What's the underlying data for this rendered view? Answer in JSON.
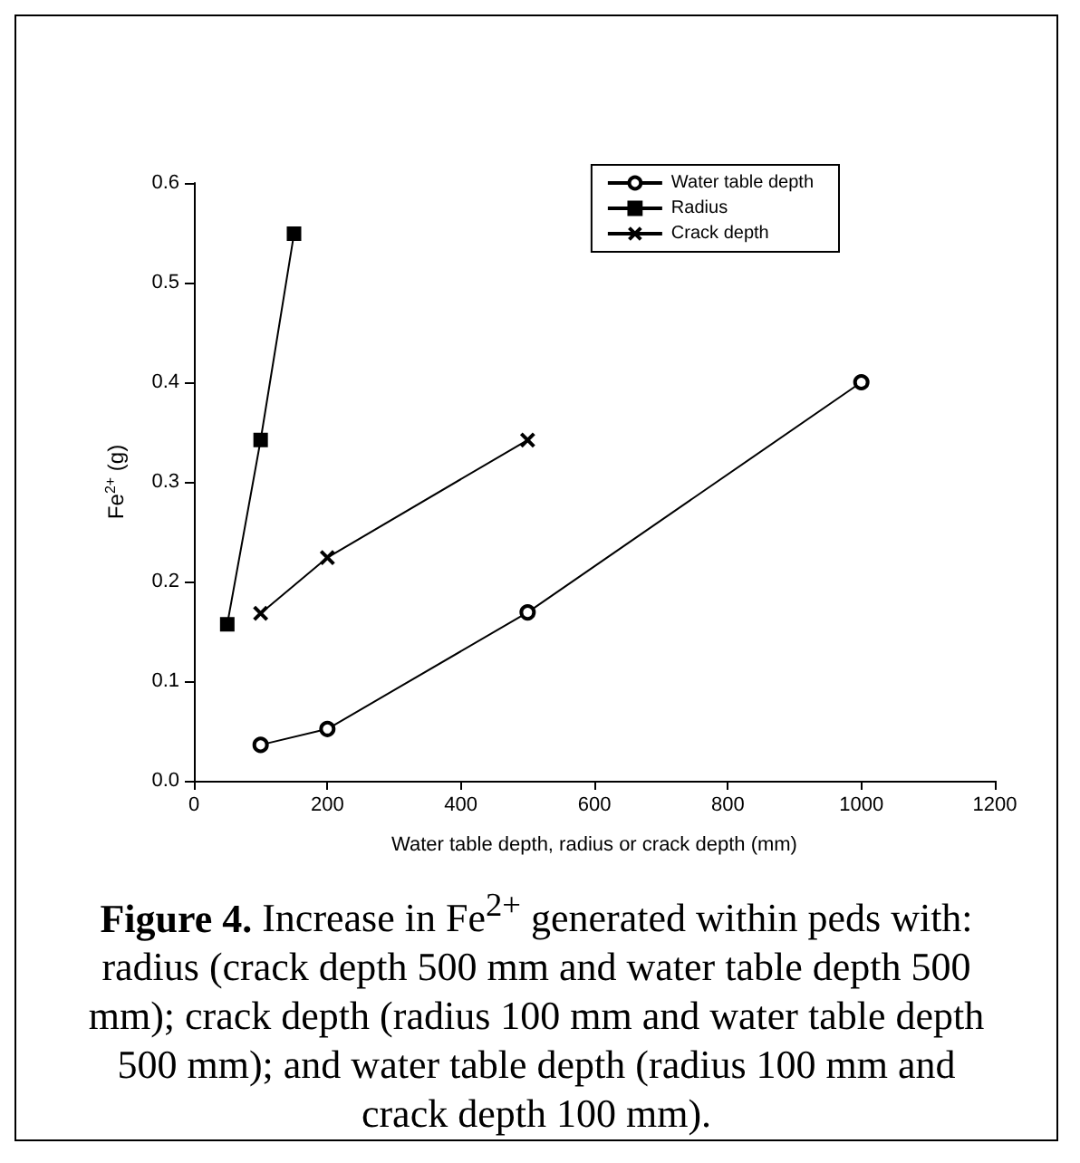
{
  "chart_data": {
    "type": "line",
    "title": "Figure 4.",
    "annotations": [
      "Increase in Fe$^{2+}$ generated within peds with: radius (crack depth 500 mm and water table depth 500 mm); crack depth (radius 100 mm and water table depth 500 mm); and water table depth (radius 100 mm and crack depth 100 mm)."
    ],
    "xlabel": "Water table depth, radius or crack depth (mm)",
    "ylabel": "Fe$^{2+}$ (g)",
    "xlim": [
      0,
      1200
    ],
    "xticks": [
      0,
      200,
      400,
      600,
      800,
      1000,
      1200
    ],
    "ylim": [
      0,
      0.6
    ],
    "yticks": [
      "0.0",
      0.1,
      0.2,
      0.3,
      0.4,
      0.5,
      0.6
    ],
    "grid": false,
    "legend": "top right",
    "line_style": "solid",
    "series": [
      {
        "name": "Water table depth",
        "color": "#000000",
        "marker": "circle",
        "x": [
          100,
          200,
          500,
          1000
        ],
        "values": [
          0.036,
          0.052,
          0.169,
          0.4
        ]
      },
      {
        "name": "Radius",
        "color": "#000000",
        "marker": "square",
        "x": [
          50,
          100,
          150
        ],
        "values": [
          0.157,
          0.342,
          0.549
        ]
      },
      {
        "name": "Crack depth",
        "color": "#000000",
        "marker": "cross",
        "x": [
          100,
          200,
          500
        ],
        "values": [
          0.168,
          0.224,
          0.342
        ]
      }
    ]
  }
}
